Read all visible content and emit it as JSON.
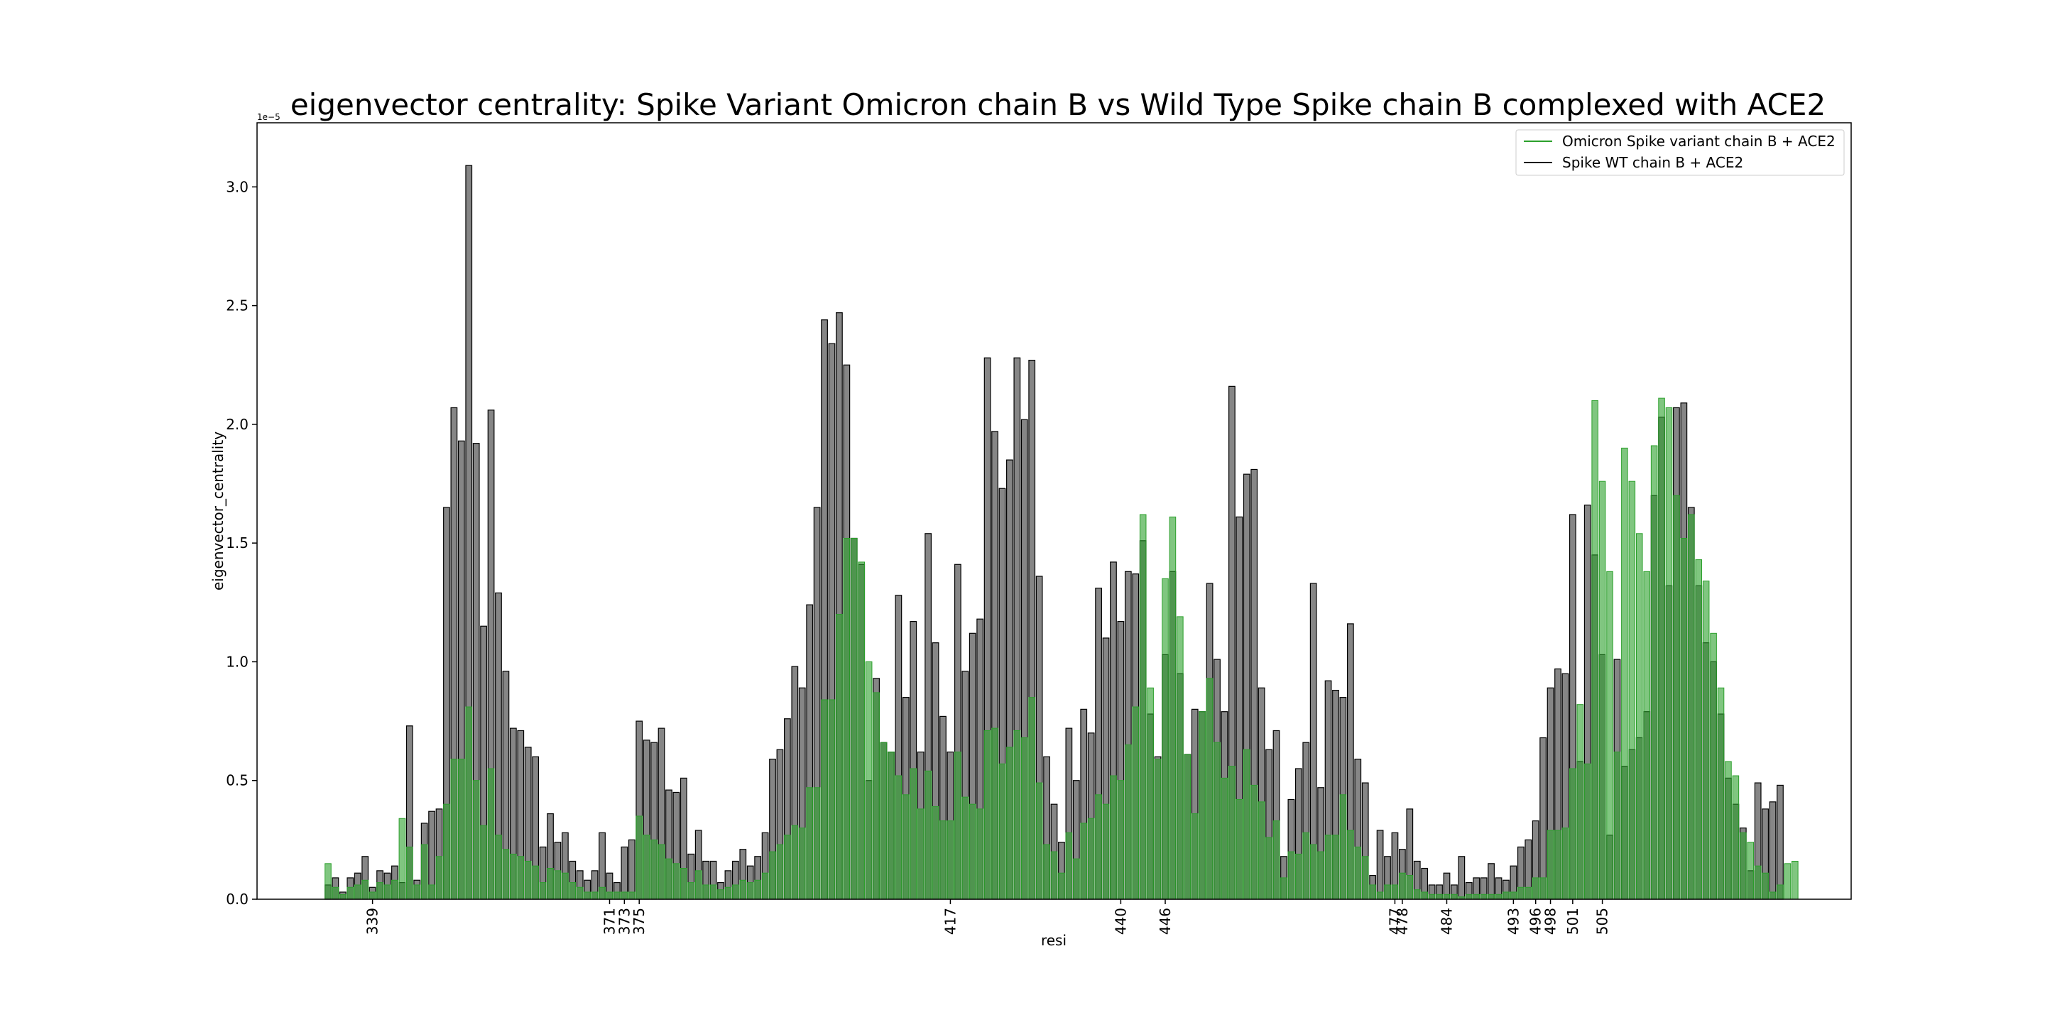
{
  "chart_data": {
    "type": "bar",
    "title": "eigenvector centrality: Spike Variant Omicron chain B vs Wild Type Spike chain B complexed with ACE2",
    "xlabel": "resi",
    "ylabel": "eigenvector_centrality",
    "y_multiplier_label": "1e−5",
    "ylim": [
      0,
      3.27
    ],
    "yticks": [
      0.0,
      0.5,
      1.0,
      1.5,
      2.0,
      2.5,
      3.0
    ],
    "ytick_labels": [
      "0.0",
      "0.5",
      "1.0",
      "1.5",
      "2.0",
      "2.5",
      "3.0"
    ],
    "grid": false,
    "legend_position": "top-right",
    "x_start": 333,
    "x_end": 526,
    "xticks": [
      339,
      371,
      373,
      375,
      417,
      440,
      446,
      477,
      478,
      484,
      493,
      496,
      498,
      501,
      505
    ],
    "xtick_labels": [
      "339",
      "371",
      "373",
      "375",
      "417",
      "440",
      "446",
      "477",
      "478",
      "484",
      "493",
      "496",
      "498",
      "501",
      "505"
    ],
    "series": [
      {
        "name": "Spike WT chain B + ACE2",
        "color": "#808080",
        "values": [
          0.06,
          0.09,
          0.03,
          0.09,
          0.11,
          0.18,
          0.05,
          0.12,
          0.11,
          0.14,
          0.07,
          0.73,
          0.08,
          0.32,
          0.37,
          0.38,
          1.65,
          2.07,
          1.93,
          3.09,
          1.92,
          1.15,
          2.06,
          1.29,
          0.96,
          0.72,
          0.71,
          0.64,
          0.6,
          0.22,
          0.36,
          0.24,
          0.28,
          0.16,
          0.12,
          0.08,
          0.12,
          0.28,
          0.11,
          0.07,
          0.22,
          0.25,
          0.75,
          0.67,
          0.66,
          0.72,
          0.46,
          0.45,
          0.51,
          0.19,
          0.29,
          0.16,
          0.16,
          0.07,
          0.12,
          0.16,
          0.21,
          0.14,
          0.18,
          0.28,
          0.59,
          0.63,
          0.76,
          0.98,
          0.89,
          1.24,
          1.65,
          2.44,
          2.34,
          2.47,
          2.25,
          1.52,
          1.41,
          0.5,
          0.93,
          0.66,
          0.62,
          1.28,
          0.85,
          1.17,
          0.62,
          1.54,
          1.08,
          0.77,
          0.62,
          1.41,
          0.96,
          1.12,
          1.18,
          2.28,
          1.97,
          1.73,
          1.85,
          2.28,
          2.02,
          2.27,
          1.36,
          0.6,
          0.4,
          0.24,
          0.72,
          0.5,
          0.8,
          0.7,
          1.31,
          1.1,
          1.42,
          1.17,
          1.38,
          1.37,
          1.51,
          0.78,
          0.6,
          1.03,
          1.38,
          0.95,
          0.61,
          0.8,
          0.79,
          1.33,
          1.01,
          0.79,
          2.16,
          1.61,
          1.79,
          1.81,
          0.89,
          0.63,
          0.71,
          0.18,
          0.42,
          0.55,
          0.66,
          1.33,
          0.47,
          0.92,
          0.88,
          0.85,
          1.16,
          0.59,
          0.49,
          0.1,
          0.29,
          0.18,
          0.28,
          0.21,
          0.38,
          0.16,
          0.13,
          0.06,
          0.06,
          0.11,
          0.06,
          0.18,
          0.07,
          0.09,
          0.09,
          0.15,
          0.09,
          0.08,
          0.14,
          0.22,
          0.25,
          0.33,
          0.68,
          0.89,
          0.97,
          0.95,
          1.62,
          0.58,
          1.66,
          1.45,
          1.03,
          0.27,
          1.01,
          0.56,
          0.63,
          0.68,
          0.79,
          1.7,
          2.03,
          1.32,
          2.07,
          2.09,
          1.65,
          1.32,
          1.08,
          1.0,
          0.78,
          0.51,
          0.4,
          0.3,
          0.12,
          0.49,
          0.38,
          0.41,
          0.48
        ]
      },
      {
        "name": "Omicron Spike variant chain B + ACE2",
        "color": "#2ca02c",
        "values": [
          0.15,
          0.05,
          0.02,
          0.05,
          0.06,
          0.08,
          0.03,
          0.07,
          0.06,
          0.08,
          0.34,
          0.22,
          0.06,
          0.23,
          0.06,
          0.18,
          0.4,
          0.59,
          0.59,
          0.81,
          0.5,
          0.31,
          0.55,
          0.27,
          0.21,
          0.19,
          0.18,
          0.16,
          0.14,
          0.07,
          0.13,
          0.12,
          0.11,
          0.07,
          0.05,
          0.03,
          0.03,
          0.05,
          0.03,
          0.03,
          0.03,
          0.03,
          0.35,
          0.27,
          0.25,
          0.23,
          0.17,
          0.15,
          0.13,
          0.07,
          0.12,
          0.06,
          0.06,
          0.04,
          0.05,
          0.06,
          0.08,
          0.07,
          0.08,
          0.11,
          0.2,
          0.23,
          0.27,
          0.31,
          0.3,
          0.47,
          0.47,
          0.84,
          0.84,
          1.2,
          1.52,
          1.52,
          1.42,
          1.0,
          0.87,
          0.66,
          0.62,
          0.52,
          0.44,
          0.55,
          0.38,
          0.54,
          0.39,
          0.33,
          0.33,
          0.62,
          0.43,
          0.4,
          0.38,
          0.71,
          0.72,
          0.57,
          0.64,
          0.71,
          0.68,
          0.85,
          0.49,
          0.23,
          0.2,
          0.11,
          0.28,
          0.17,
          0.32,
          0.34,
          0.44,
          0.4,
          0.52,
          0.5,
          0.65,
          0.81,
          1.62,
          0.89,
          0.59,
          1.35,
          1.61,
          1.19,
          0.61,
          0.36,
          0.79,
          0.93,
          0.66,
          0.51,
          0.56,
          0.42,
          0.63,
          0.48,
          0.41,
          0.26,
          0.33,
          0.09,
          0.2,
          0.19,
          0.28,
          0.23,
          0.2,
          0.27,
          0.27,
          0.44,
          0.29,
          0.22,
          0.18,
          0.06,
          0.03,
          0.06,
          0.06,
          0.11,
          0.1,
          0.04,
          0.03,
          0.02,
          0.02,
          0.02,
          0.02,
          0.01,
          0.02,
          0.02,
          0.02,
          0.02,
          0.02,
          0.03,
          0.03,
          0.05,
          0.05,
          0.09,
          0.09,
          0.29,
          0.29,
          0.3,
          0.55,
          0.82,
          0.57,
          2.1,
          1.76,
          1.38,
          0.62,
          1.9,
          1.76,
          1.54,
          1.38,
          1.91,
          2.11,
          2.07,
          1.7,
          1.52,
          1.62,
          1.43,
          1.34,
          1.12,
          0.89,
          0.58,
          0.52,
          0.28,
          0.24,
          0.14,
          0.11,
          0.03,
          0.06,
          0.15,
          0.16
        ]
      }
    ]
  }
}
